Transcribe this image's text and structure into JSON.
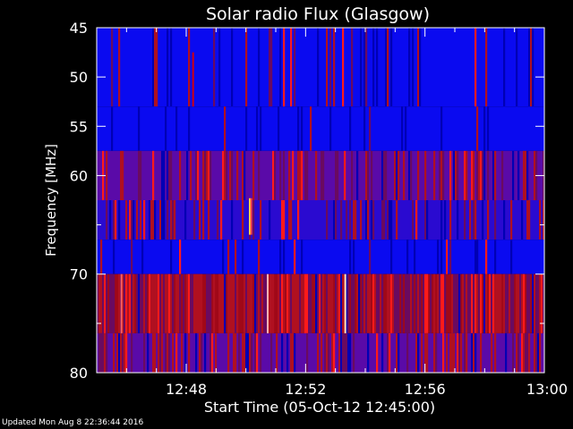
{
  "chart_data": {
    "type": "heatmap",
    "title": "Solar radio Flux (Glasgow)",
    "xlabel": "Start Time (05-Oct-12 12:45:00)",
    "ylabel": "Frequency [MHz]",
    "x_ticks": [
      "12:48",
      "12:52",
      "12:56",
      "13:00"
    ],
    "x_tick_minutes_after_start": [
      3,
      7,
      11,
      15
    ],
    "x_range_minutes_after_start": [
      0,
      15
    ],
    "y_ticks": [
      45,
      50,
      55,
      60,
      65,
      70,
      75,
      80
    ],
    "y_tick_labels": [
      "45",
      "50",
      "55",
      "60",
      "",
      "70",
      "",
      "80"
    ],
    "ylim": [
      80,
      45
    ],
    "frequency_bands": [
      {
        "from_mhz": 45,
        "to_mhz": 53,
        "dominant": "blue",
        "red_fraction": 0.08
      },
      {
        "from_mhz": 53,
        "to_mhz": 57.5,
        "dominant": "blue",
        "red_fraction": 0.02
      },
      {
        "from_mhz": 57.5,
        "to_mhz": 62.5,
        "dominant": "purple",
        "red_fraction": 0.35
      },
      {
        "from_mhz": 62.5,
        "to_mhz": 66.5,
        "dominant": "mixed",
        "red_fraction": 0.25
      },
      {
        "from_mhz": 66.5,
        "to_mhz": 70,
        "dominant": "blue",
        "red_fraction": 0.05
      },
      {
        "from_mhz": 70,
        "to_mhz": 76,
        "dominant": "red",
        "red_fraction": 0.75
      },
      {
        "from_mhz": 76,
        "to_mhz": 80,
        "dominant": "purple",
        "red_fraction": 0.35
      }
    ],
    "colors": {
      "background": "#000000",
      "low": "#0000ff",
      "high": "#ff0000",
      "peak": "#ffdd44"
    }
  },
  "footer": {
    "updated": "Updated Mon Aug  8 22:36:44 2016"
  }
}
